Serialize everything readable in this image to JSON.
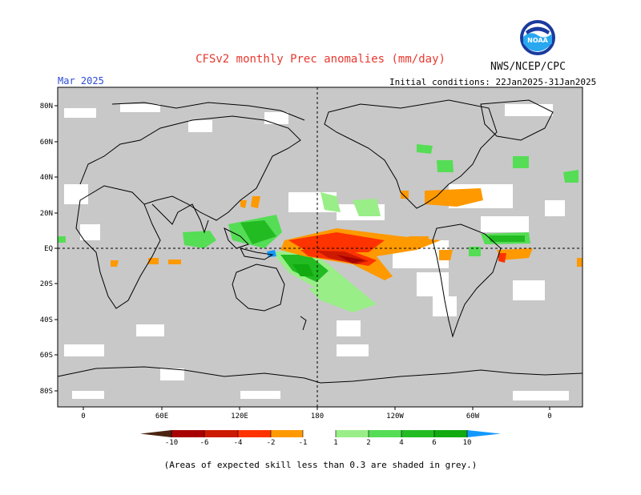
{
  "header": {
    "title": "CFSv2 monthly Prec anomalies (mm/day)",
    "org": "NWS/NCEP/CPC",
    "month": "Mar 2025",
    "initial_conditions": "Initial conditions: 22Jan2025-31Jan2025",
    "logo_text": "NOAA"
  },
  "map": {
    "lat_labels": [
      "80N",
      "60N",
      "40N",
      "20N",
      "EQ",
      "20S",
      "40S",
      "60S",
      "80S"
    ],
    "lon_labels": [
      "0",
      "60E",
      "120E",
      "180",
      "120W",
      "60W",
      "0"
    ],
    "background_color": "#c8c8c8"
  },
  "colorbar": {
    "labels": [
      "-10",
      "-6",
      "-4",
      "-2",
      "-1",
      "1",
      "2",
      "4",
      "6",
      "10"
    ],
    "colors": [
      "#4a2410",
      "#a80000",
      "#cc1a00",
      "#ff3300",
      "#ff9900",
      "#ffffff",
      "#99ee88",
      "#55dd55",
      "#22bb22",
      "#11aa11",
      "#1199ff"
    ]
  },
  "footnote": "(Areas of expected skill less than 0.3 are shaded in grey.)"
}
